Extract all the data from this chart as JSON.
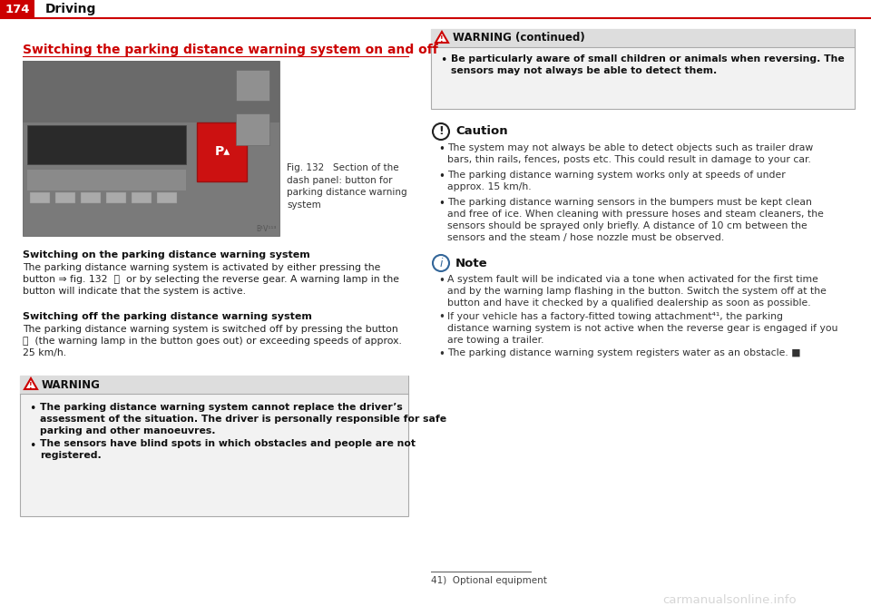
{
  "page_num": "174",
  "header_title": "Driving",
  "section_title": "Switching the parking distance warning system on and off",
  "fig_caption": "Fig. 132   Section of the\ndash panel: button for\nparking distance warning\nsystem",
  "switching_on_header": "Switching on the parking distance warning system",
  "switching_on_text": "The parking distance warning system is activated by either pressing the\nbutton ⇒ fig. 132  Ⓟ  or by selecting the reverse gear. A warning lamp in the\nbutton will indicate that the system is active.",
  "switching_off_header": "Switching off the parking distance warning system",
  "switching_off_text": "The parking distance warning system is switched off by pressing the button\nⓅ  (the warning lamp in the button goes out) or exceeding speeds of approx.\n25 km/h.",
  "warning_header": "WARNING",
  "warning_bullets": [
    "The parking distance warning system cannot replace the driver’s\nassessment of the situation. The driver is personally responsible for safe\nparking and other manoeuvres.",
    "The sensors have blind spots in which obstacles and people are not\nregistered."
  ],
  "warning_cont_header": "WARNING (continued)",
  "warning_cont_bullet": "Be particularly aware of small children or animals when reversing. The\nsensors may not always be able to detect them.",
  "caution_header": "Caution",
  "caution_bullets": [
    "The system may not always be able to detect objects such as trailer draw\nbars, thin rails, fences, posts etc. This could result in damage to your car.",
    "The parking distance warning system works only at speeds of under\napprox. 15 km/h.",
    "The parking distance warning sensors in the bumpers must be kept clean\nand free of ice. When cleaning with pressure hoses and steam cleaners, the\nsensors should be sprayed only briefly. A distance of 10 cm between the\nsensors and the steam / hose nozzle must be observed."
  ],
  "note_header": "Note",
  "note_bullets": [
    "A system fault will be indicated via a tone when activated for the first time\nand by the warning lamp flashing in the button. Switch the system off at the\nbutton and have it checked by a qualified dealership as soon as possible.",
    "If your vehicle has a factory-fitted towing attachment⁴¹, the parking\ndistance warning system is not active when the reverse gear is engaged if you\nare towing a trailer.",
    "The parking distance warning system registers water as an obstacle. ■"
  ],
  "footnote": "41)  Optional equipment",
  "bg_color": "#ffffff",
  "header_red": "#cc0000",
  "border_color": "#aaaaaa",
  "warning_bg": "#f2f2f2",
  "header_bg_gray": "#e8e8e8",
  "col_split": 460
}
